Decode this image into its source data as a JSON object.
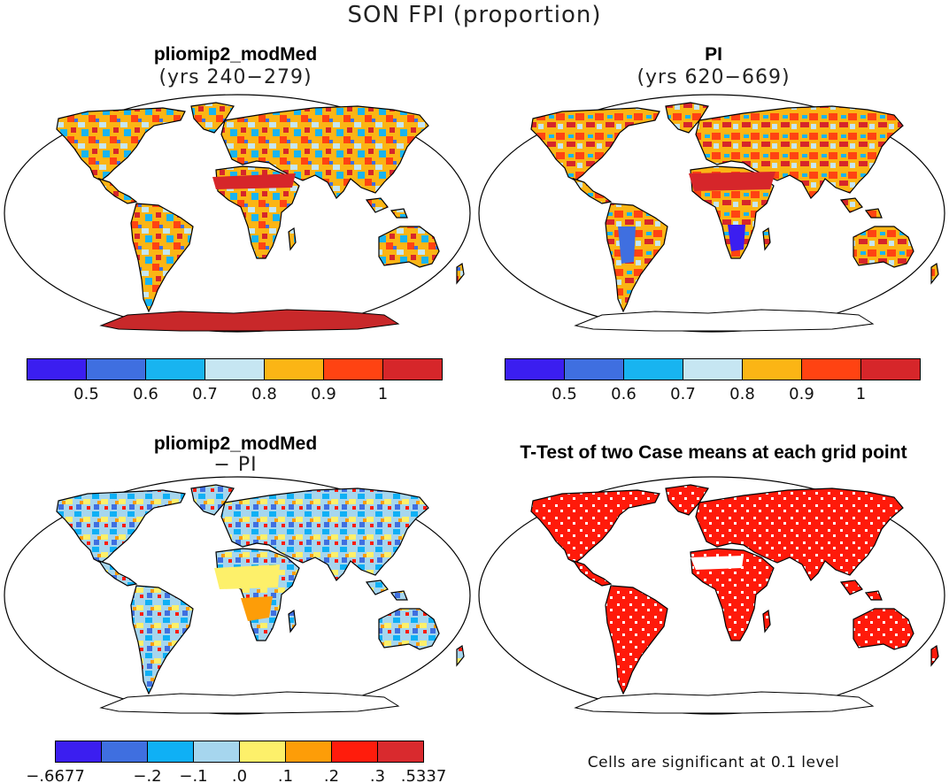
{
  "title": "SON FPI (proportion)",
  "panels": {
    "top_left": {
      "title": "pliomip2_modMed",
      "subtitle": "(yrs 240−279)"
    },
    "top_right": {
      "title": "PI",
      "subtitle": "(yrs 620−669)"
    },
    "bottom_left": {
      "title": "pliomip2_modMed",
      "subtitle": "− PI"
    },
    "bottom_right": {
      "title": "T-Test of two Case means at each grid point",
      "footnote": "Cells are significant at 0.1 level"
    }
  },
  "colorbars": {
    "fpi": {
      "colors": [
        "#3b1ef0",
        "#3f6fe0",
        "#18b4f0",
        "#c6e6f2",
        "#fbb515",
        "#ff4312",
        "#d6262a"
      ],
      "labels": [
        "0.5",
        "0.6",
        "0.7",
        "0.8",
        "0.9",
        "1"
      ]
    },
    "diff": {
      "colors": [
        "#3b1ef0",
        "#3f6fe0",
        "#0fb0f5",
        "#a6d6ee",
        "#fdf06a",
        "#fd9d08",
        "#ff1c0c",
        "#d92a2e"
      ],
      "labels": [
        "−.6677",
        "−.2",
        "−.1",
        ".0",
        ".1",
        ".2",
        ".3",
        ".5337"
      ]
    }
  },
  "colors": {
    "significant": "#ff1a0a",
    "antarctic_plio": "#c8282a"
  }
}
